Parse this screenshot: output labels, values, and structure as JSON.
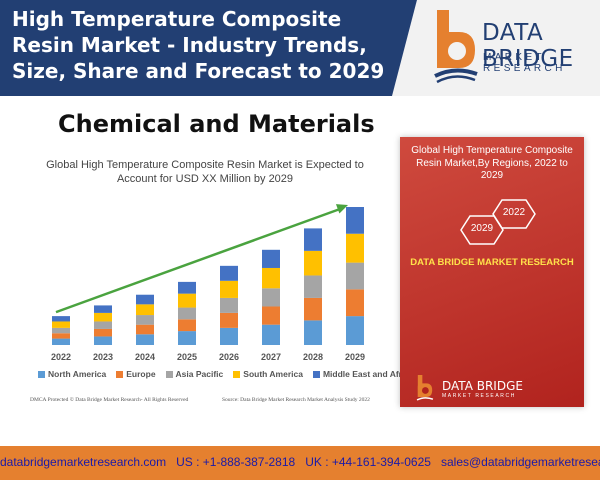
{
  "header": {
    "title": "High Temperature Composite Resin Market - Industry Trends, Size, Share and Forecast to 2029",
    "brand_name": "DATA BRIDGE",
    "brand_sub": "MARKET RESEARCH",
    "bg_color": "#223f73"
  },
  "category": "Chemical and Materials",
  "chart_data": {
    "type": "bar",
    "stacked": true,
    "title": "Global High Temperature Composite Resin Market is Expected to Account for USD XX Million by 2029",
    "categories": [
      "2022",
      "2023",
      "2024",
      "2025",
      "2026",
      "2027",
      "2028",
      "2029"
    ],
    "series": [
      {
        "name": "North America",
        "color": "#5b9bd5",
        "values": [
          6,
          8,
          10,
          13,
          16,
          19,
          23,
          27
        ]
      },
      {
        "name": "Europe",
        "color": "#ed7d31",
        "values": [
          5,
          7,
          9,
          11,
          14,
          17,
          21,
          25
        ]
      },
      {
        "name": "Asia Pacific",
        "color": "#a5a5a5",
        "values": [
          5,
          7,
          9,
          11,
          14,
          17,
          21,
          25
        ]
      },
      {
        "name": "South America",
        "color": "#ffc000",
        "values": [
          6,
          8,
          10,
          13,
          16,
          19,
          23,
          27
        ]
      },
      {
        "name": "Middle East and Africa",
        "color": "#4472c4",
        "values": [
          5,
          7,
          9,
          11,
          14,
          17,
          21,
          25
        ]
      }
    ],
    "trend_arrow": true,
    "trend_color": "#4aa33f",
    "legend": "bottom",
    "grid": false
  },
  "footnotes": {
    "left": "DMCA Protected © Data Bridge Market Research- All Rights Reserved",
    "right": "Source: Data Bridge Market Research Market Analysis Study 2022"
  },
  "regions_panel": {
    "title": "Global High Temperature Composite Resin Market,By Regions, 2022 to 2029",
    "hex_top": "2022",
    "hex_bottom": "2029",
    "subtitle": "DATA BRIDGE MARKET RESEARCH",
    "brand_name": "DATA BRIDGE",
    "brand_sub": "MARKET RESEARCH",
    "bg_color": "#c0302a"
  },
  "footer": {
    "website": "databridgemarketresearch.com",
    "us_phone": "US : +1-888-387-2818",
    "uk_phone": "UK : +44-161-394-0625",
    "email": "sales@databridgemarketresearch.com",
    "bg_color": "#e5802f"
  }
}
